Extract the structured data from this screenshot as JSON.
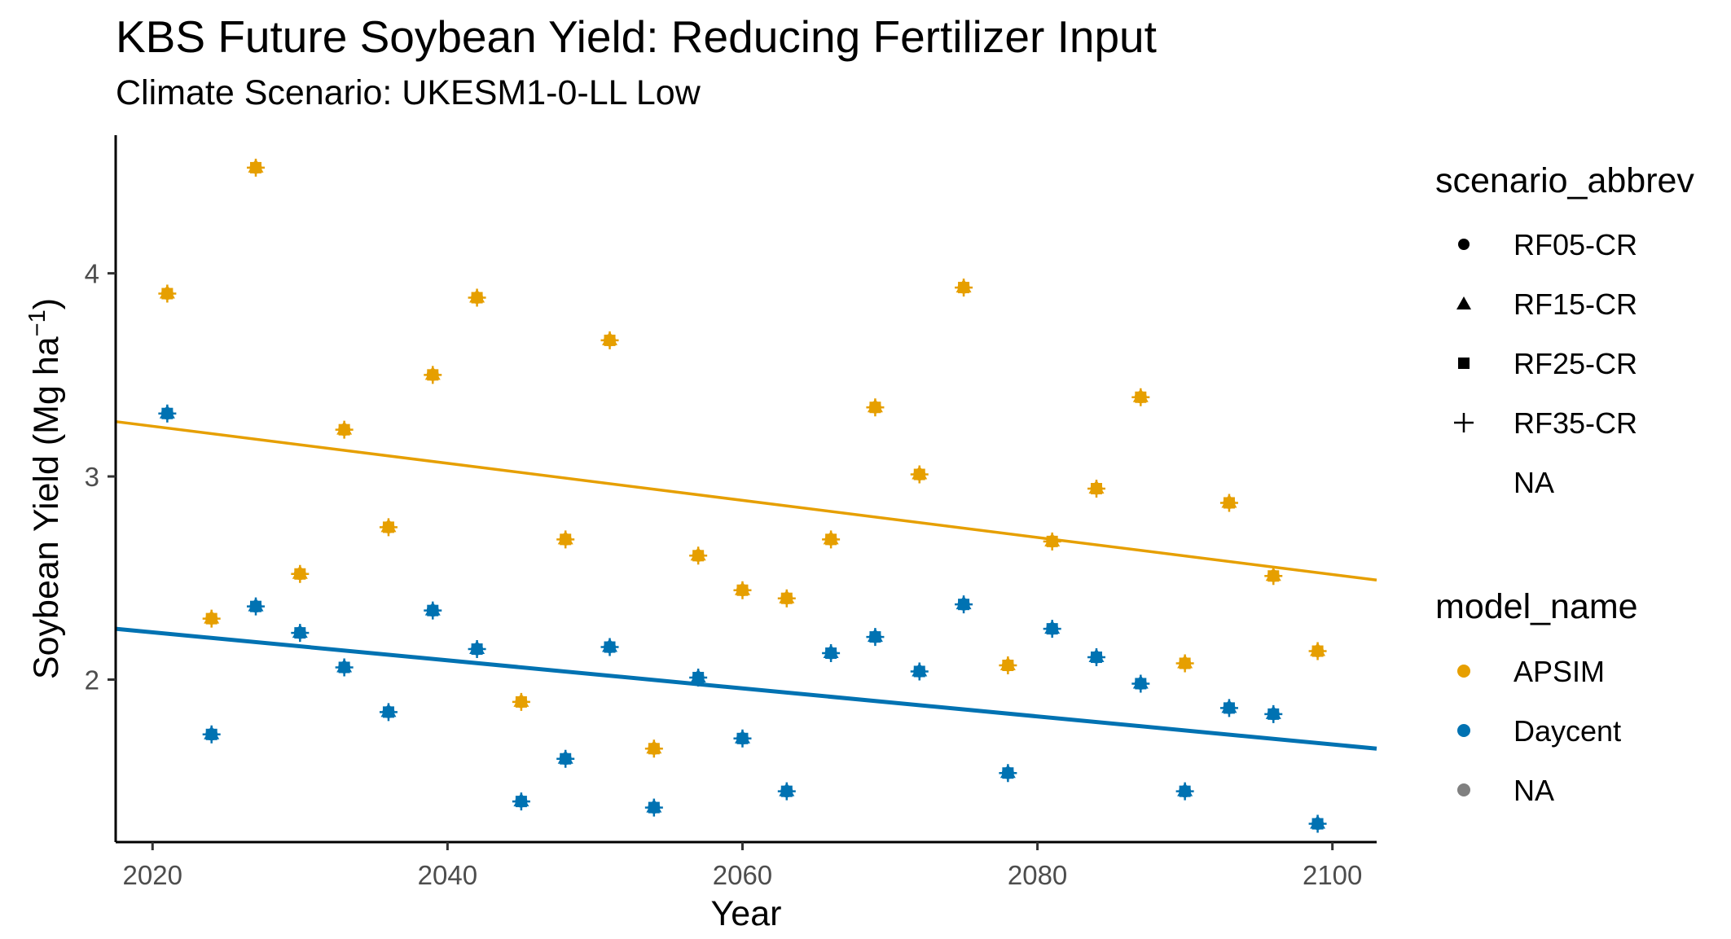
{
  "title": "KBS Future Soybean Yield: Reducing Fertilizer Input",
  "subtitle": "Climate Scenario: UKESM1-0-LL Low",
  "colors": {
    "APSIM": "#E69F00",
    "Daycent": "#0072B2",
    "NA": "#808080"
  },
  "legend": {
    "shape_title": "scenario_abbrev",
    "shape_items": [
      {
        "label": "RF05-CR",
        "shape": "circle"
      },
      {
        "label": "RF15-CR",
        "shape": "triangle"
      },
      {
        "label": "RF25-CR",
        "shape": "square"
      },
      {
        "label": "RF35-CR",
        "shape": "plus"
      },
      {
        "label": "NA",
        "shape": "none"
      }
    ],
    "color_title": "model_name",
    "color_items": [
      {
        "label": "APSIM",
        "color": "#E69F00"
      },
      {
        "label": "Daycent",
        "color": "#0072B2"
      },
      {
        "label": "NA",
        "color": "#808080"
      }
    ]
  },
  "chart_data": {
    "type": "scatter",
    "title": "KBS Future Soybean Yield: Reducing Fertilizer Input",
    "subtitle": "Climate Scenario: UKESM1-0-LL Low",
    "xlabel": "Year",
    "ylabel": "Soybean Yield (Mg ha",
    "ylabel_superscript": "−1",
    "ylabel_close": ")",
    "xlim": [
      2017.5,
      2103
    ],
    "ylim": [
      1.2,
      4.68
    ],
    "xticks": [
      2020,
      2040,
      2060,
      2080,
      2100
    ],
    "yticks": [
      2,
      3,
      4
    ],
    "grid": false,
    "legend_position": "right",
    "series": [
      {
        "name": "APSIM",
        "color": "#E69F00",
        "x": [
          2021,
          2024,
          2027,
          2030,
          2033,
          2036,
          2039,
          2042,
          2045,
          2048,
          2051,
          2054,
          2057,
          2060,
          2063,
          2066,
          2069,
          2072,
          2075,
          2078,
          2081,
          2084,
          2087,
          2090,
          2093,
          2096,
          2099
        ],
        "y": [
          3.9,
          2.3,
          4.52,
          2.52,
          3.23,
          2.75,
          3.5,
          3.88,
          1.89,
          2.69,
          3.67,
          1.66,
          2.61,
          2.44,
          2.4,
          2.69,
          3.34,
          3.01,
          3.93,
          2.07,
          2.68,
          2.94,
          3.39,
          2.08,
          2.87,
          2.51,
          2.14
        ],
        "trend": {
          "x": [
            2017.5,
            2103
          ],
          "y": [
            3.27,
            2.49
          ]
        }
      },
      {
        "name": "Daycent",
        "color": "#0072B2",
        "x": [
          2021,
          2024,
          2027,
          2030,
          2033,
          2036,
          2039,
          2042,
          2045,
          2048,
          2051,
          2054,
          2057,
          2060,
          2063,
          2066,
          2069,
          2072,
          2075,
          2078,
          2081,
          2084,
          2087,
          2090,
          2093,
          2096,
          2099
        ],
        "y": [
          3.31,
          1.73,
          2.36,
          2.23,
          2.06,
          1.84,
          2.34,
          2.15,
          1.4,
          1.61,
          2.16,
          1.37,
          2.01,
          1.71,
          1.45,
          2.13,
          2.21,
          2.04,
          2.37,
          1.54,
          2.25,
          2.11,
          1.98,
          1.45,
          1.86,
          1.83,
          1.29
        ],
        "trend": {
          "x": [
            2017.5,
            2103
          ],
          "y": [
            2.25,
            1.66
          ]
        }
      }
    ]
  }
}
